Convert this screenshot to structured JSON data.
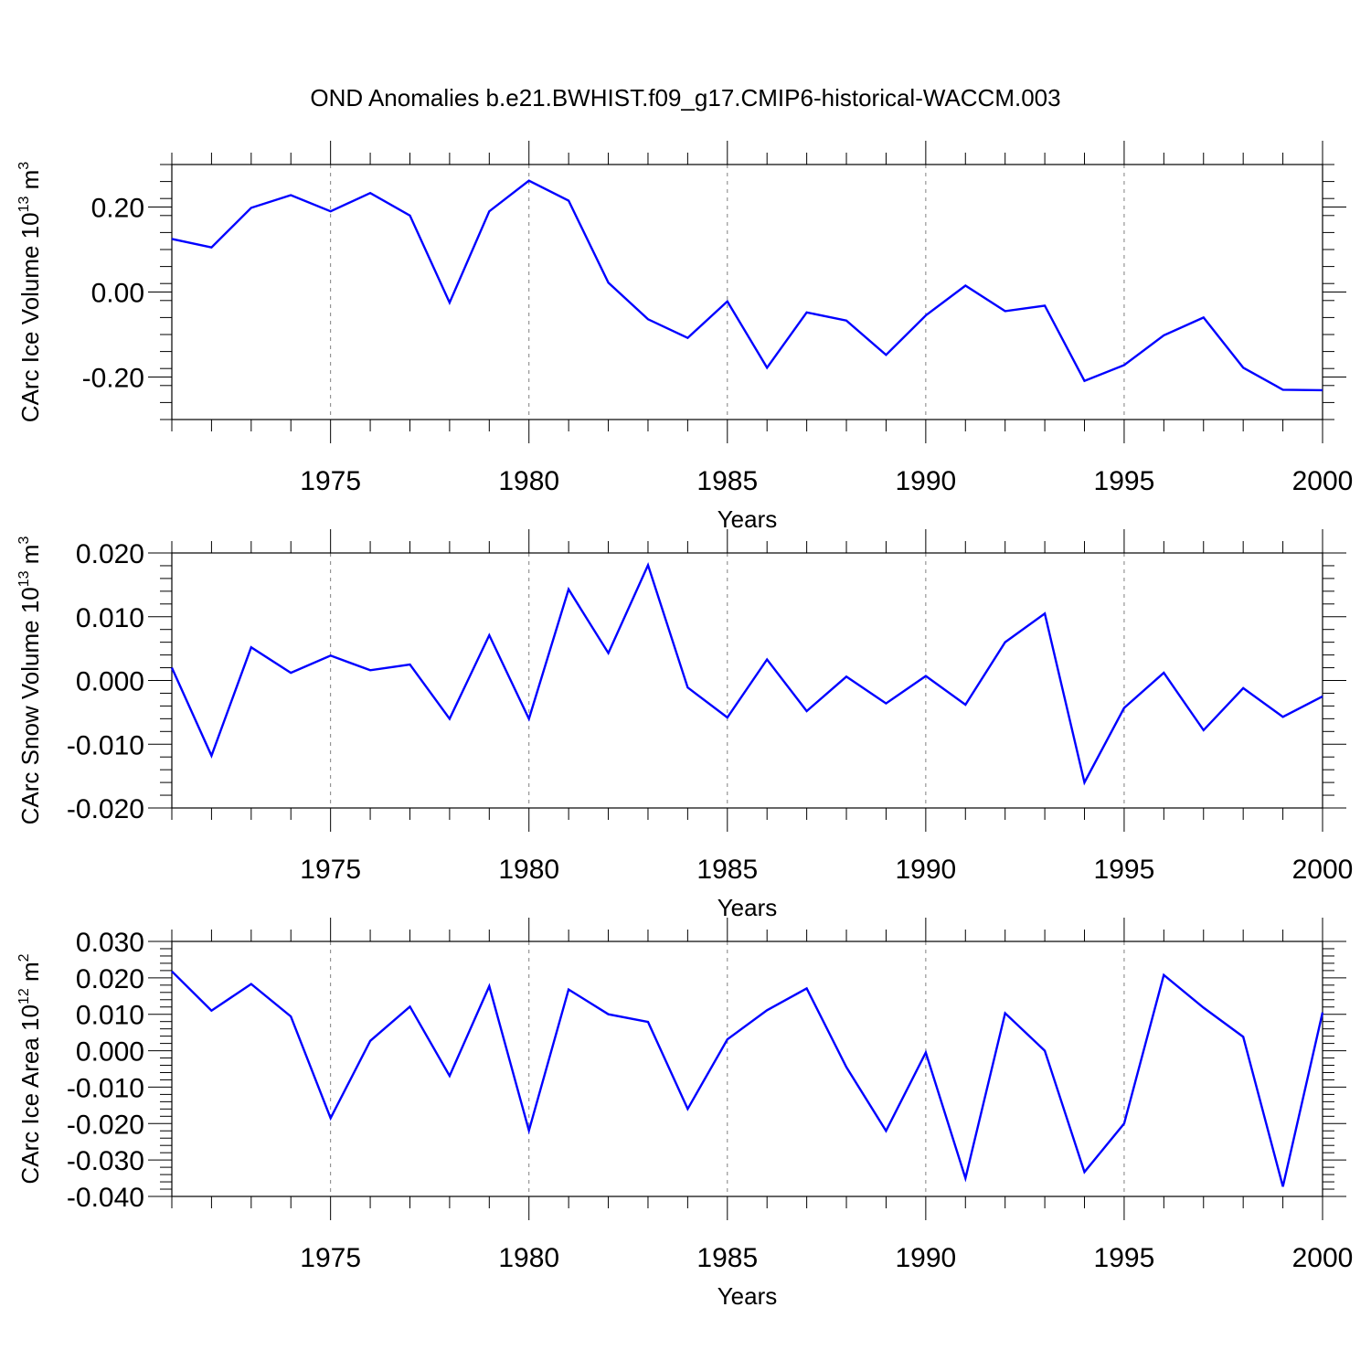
{
  "title": "OND Anomalies b.e21.BWHIST.f09_g17.CMIP6-historical-WACCM.003",
  "colors": {
    "line": "#0000ff",
    "axis": "#000000",
    "grid": "#808080"
  },
  "chart_data": [
    {
      "type": "line",
      "ylabel": {
        "base": "CArc Ice Volume 10",
        "exp": "13",
        "unit": " m",
        "unit_exp": "3"
      },
      "xlabel": "Years",
      "xlim": [
        1971,
        2000
      ],
      "ylim": [
        -0.3,
        0.3
      ],
      "yticks": [
        -0.2,
        0.0,
        0.2
      ],
      "ytick_labels": [
        "-0.20",
        "0.00",
        "0.20"
      ],
      "xticks": [
        1975,
        1980,
        1985,
        1990,
        1995,
        2000
      ],
      "xtick_labels": [
        "1975",
        "1980",
        "1985",
        "1990",
        "1995",
        "2000"
      ],
      "grid_x": true,
      "series": [
        {
          "name": "CArc Ice Volume",
          "x": [
            1971,
            1972,
            1973,
            1974,
            1975,
            1976,
            1977,
            1978,
            1979,
            1980,
            1981,
            1982,
            1983,
            1984,
            1985,
            1986,
            1987,
            1988,
            1989,
            1990,
            1991,
            1992,
            1993,
            1994,
            1995,
            1996,
            1997,
            1998,
            1999,
            2000
          ],
          "values": [
            0.125,
            0.105,
            0.198,
            0.228,
            0.19,
            0.233,
            0.18,
            -0.025,
            0.19,
            0.262,
            0.215,
            0.022,
            -0.064,
            -0.108,
            -0.022,
            -0.178,
            -0.048,
            -0.067,
            -0.148,
            -0.055,
            0.015,
            -0.045,
            -0.032,
            -0.209,
            -0.172,
            -0.102,
            -0.06,
            -0.178,
            -0.23,
            -0.231
          ]
        }
      ]
    },
    {
      "type": "line",
      "ylabel": {
        "base": "CArc Snow Volume 10",
        "exp": "13",
        "unit": " m",
        "unit_exp": "3"
      },
      "xlabel": "Years",
      "xlim": [
        1971,
        2000
      ],
      "ylim": [
        -0.02,
        0.02
      ],
      "yticks": [
        -0.02,
        -0.01,
        0.0,
        0.01,
        0.02
      ],
      "ytick_labels": [
        "-0.020",
        "-0.010",
        "0.000",
        "0.010",
        "0.020"
      ],
      "xticks": [
        1975,
        1980,
        1985,
        1990,
        1995,
        2000
      ],
      "xtick_labels": [
        "1975",
        "1980",
        "1985",
        "1990",
        "1995",
        "2000"
      ],
      "grid_x": true,
      "series": [
        {
          "name": "CArc Snow Volume",
          "x": [
            1971,
            1972,
            1973,
            1974,
            1975,
            1976,
            1977,
            1978,
            1979,
            1980,
            1981,
            1982,
            1983,
            1984,
            1985,
            1986,
            1987,
            1988,
            1989,
            1990,
            1991,
            1992,
            1993,
            1994,
            1995,
            1996,
            1997,
            1998,
            1999,
            2000
          ],
          "values": [
            0.002,
            -0.0118,
            0.0052,
            0.0012,
            0.0039,
            0.0016,
            0.0025,
            -0.006,
            0.0071,
            -0.006,
            0.0143,
            0.0043,
            0.0181,
            -0.0011,
            -0.0058,
            0.0033,
            -0.0048,
            0.0006,
            -0.0036,
            0.0007,
            -0.0038,
            0.006,
            0.0105,
            -0.016,
            -0.0043,
            0.0012,
            -0.0078,
            -0.0012,
            -0.0057,
            -0.0025
          ]
        }
      ]
    },
    {
      "type": "line",
      "ylabel": {
        "base": "CArc Ice Area 10",
        "exp": "12",
        "unit": " m",
        "unit_exp": "2"
      },
      "xlabel": "Years",
      "xlim": [
        1971,
        2000
      ],
      "ylim": [
        -0.04,
        0.03
      ],
      "yticks": [
        -0.04,
        -0.03,
        -0.02,
        -0.01,
        0.0,
        0.01,
        0.02,
        0.03
      ],
      "ytick_labels": [
        "-0.040",
        "-0.030",
        "-0.020",
        "-0.010",
        "0.000",
        "0.010",
        "0.020",
        "0.030"
      ],
      "xticks": [
        1975,
        1980,
        1985,
        1990,
        1995,
        2000
      ],
      "xtick_labels": [
        "1975",
        "1980",
        "1985",
        "1990",
        "1995",
        "2000"
      ],
      "grid_x": true,
      "series": [
        {
          "name": "CArc Ice Area",
          "x": [
            1971,
            1972,
            1973,
            1974,
            1975,
            1976,
            1977,
            1978,
            1979,
            1980,
            1981,
            1982,
            1983,
            1984,
            1985,
            1986,
            1987,
            1988,
            1989,
            1990,
            1991,
            1992,
            1993,
            1994,
            1995,
            1996,
            1997,
            1998,
            1999,
            2000
          ],
          "values": [
            0.0218,
            0.011,
            0.0183,
            0.0094,
            -0.0185,
            0.0027,
            0.0121,
            -0.0069,
            0.0177,
            -0.0219,
            0.0168,
            0.01,
            0.0079,
            -0.016,
            0.0031,
            0.0111,
            0.0171,
            -0.0045,
            -0.022,
            -0.0005,
            -0.035,
            0.0103,
            0.0,
            -0.0333,
            -0.02,
            0.0208,
            0.0118,
            0.0038,
            -0.0373,
            0.0105
          ]
        }
      ]
    }
  ]
}
